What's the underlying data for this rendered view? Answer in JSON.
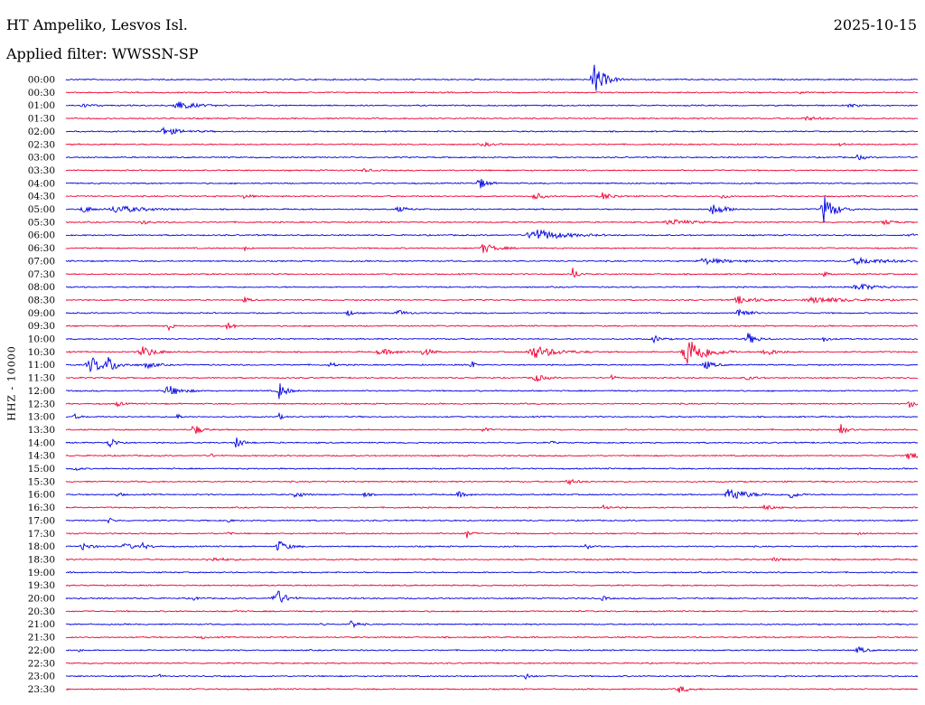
{
  "header": {
    "station": "HT Ampeliko, Lesvos Isl.",
    "date": "2025-10-15",
    "filter_label": "Applied filter: WWSSN-SP"
  },
  "chart_data": {
    "type": "line",
    "title": "HT Ampeliko, Lesvos Isl.",
    "channel_label": "HHZ - 10000",
    "colors": [
      "#0000e0",
      "#ee0033"
    ],
    "rows": [
      {
        "label": "00:00",
        "color": "blue",
        "events": [
          {
            "x": 0.62,
            "amp": 18,
            "w": 0.012
          }
        ]
      },
      {
        "label": "00:30",
        "color": "red",
        "events": [
          {
            "x": 0.86,
            "amp": 2,
            "w": 0.004
          }
        ]
      },
      {
        "label": "01:00",
        "color": "blue",
        "events": [
          {
            "x": 0.13,
            "amp": 5,
            "w": 0.02
          },
          {
            "x": 0.02,
            "amp": 2,
            "w": 0.01
          },
          {
            "x": 0.92,
            "amp": 2,
            "w": 0.01
          }
        ]
      },
      {
        "label": "01:30",
        "color": "red",
        "events": [
          {
            "x": 0.87,
            "amp": 2,
            "w": 0.015
          }
        ]
      },
      {
        "label": "02:00",
        "color": "blue",
        "events": [
          {
            "x": 0.115,
            "amp": 4,
            "w": 0.02
          }
        ]
      },
      {
        "label": "02:30",
        "color": "red",
        "events": [
          {
            "x": 0.49,
            "amp": 2,
            "w": 0.01
          },
          {
            "x": 0.91,
            "amp": 2,
            "w": 0.008
          }
        ]
      },
      {
        "label": "03:00",
        "color": "blue",
        "events": [
          {
            "x": 0.93,
            "amp": 4,
            "w": 0.006
          }
        ]
      },
      {
        "label": "03:30",
        "color": "red",
        "events": [
          {
            "x": 0.35,
            "amp": 2,
            "w": 0.008
          }
        ]
      },
      {
        "label": "04:00",
        "color": "blue",
        "events": [
          {
            "x": 0.485,
            "amp": 7,
            "w": 0.008
          }
        ]
      },
      {
        "label": "04:30",
        "color": "red",
        "events": [
          {
            "x": 0.55,
            "amp": 5,
            "w": 0.008
          },
          {
            "x": 0.63,
            "amp": 4,
            "w": 0.012
          },
          {
            "x": 0.21,
            "amp": 3,
            "w": 0.006
          },
          {
            "x": 0.77,
            "amp": 3,
            "w": 0.006
          }
        ]
      },
      {
        "label": "05:00",
        "color": "blue",
        "events": [
          {
            "x": 0.89,
            "amp": 16,
            "w": 0.012
          },
          {
            "x": 0.02,
            "amp": 4,
            "w": 0.01
          },
          {
            "x": 0.06,
            "amp": 4,
            "w": 0.03
          },
          {
            "x": 0.76,
            "amp": 6,
            "w": 0.015
          },
          {
            "x": 0.39,
            "amp": 3,
            "w": 0.01
          }
        ]
      },
      {
        "label": "05:30",
        "color": "red",
        "events": [
          {
            "x": 0.71,
            "amp": 3,
            "w": 0.025
          },
          {
            "x": 0.96,
            "amp": 3,
            "w": 0.01
          },
          {
            "x": 0.09,
            "amp": 2,
            "w": 0.01
          }
        ]
      },
      {
        "label": "06:00",
        "color": "blue",
        "events": [
          {
            "x": 0.55,
            "amp": 7,
            "w": 0.03
          },
          {
            "x": 0.99,
            "amp": 4,
            "w": 0.005
          }
        ]
      },
      {
        "label": "06:30",
        "color": "red",
        "events": [
          {
            "x": 0.49,
            "amp": 5,
            "w": 0.015
          },
          {
            "x": 0.21,
            "amp": 2,
            "w": 0.005
          }
        ]
      },
      {
        "label": "07:00",
        "color": "blue",
        "events": [
          {
            "x": 0.75,
            "amp": 3,
            "w": 0.03
          },
          {
            "x": 0.93,
            "amp": 3,
            "w": 0.04
          }
        ]
      },
      {
        "label": "07:30",
        "color": "red",
        "events": [
          {
            "x": 0.595,
            "amp": 7,
            "w": 0.006
          },
          {
            "x": 0.89,
            "amp": 3,
            "w": 0.005
          }
        ]
      },
      {
        "label": "08:00",
        "color": "blue",
        "events": [
          {
            "x": 0.93,
            "amp": 4,
            "w": 0.02
          }
        ]
      },
      {
        "label": "08:30",
        "color": "red",
        "events": [
          {
            "x": 0.79,
            "amp": 4,
            "w": 0.02
          },
          {
            "x": 0.21,
            "amp": 3,
            "w": 0.006
          },
          {
            "x": 0.88,
            "amp": 3,
            "w": 0.04
          }
        ]
      },
      {
        "label": "09:00",
        "color": "blue",
        "events": [
          {
            "x": 0.79,
            "amp": 7,
            "w": 0.01
          },
          {
            "x": 0.33,
            "amp": 5,
            "w": 0.005
          },
          {
            "x": 0.39,
            "amp": 3,
            "w": 0.01
          }
        ]
      },
      {
        "label": "09:30",
        "color": "red",
        "events": [
          {
            "x": 0.12,
            "amp": 6,
            "w": 0.004
          },
          {
            "x": 0.19,
            "amp": 5,
            "w": 0.006
          }
        ]
      },
      {
        "label": "10:00",
        "color": "blue",
        "events": [
          {
            "x": 0.8,
            "amp": 7,
            "w": 0.01
          },
          {
            "x": 0.69,
            "amp": 4,
            "w": 0.008
          },
          {
            "x": 0.89,
            "amp": 3,
            "w": 0.006
          }
        ]
      },
      {
        "label": "10:30",
        "color": "red",
        "events": [
          {
            "x": 0.73,
            "amp": 18,
            "w": 0.02
          },
          {
            "x": 0.55,
            "amp": 7,
            "w": 0.025
          },
          {
            "x": 0.09,
            "amp": 6,
            "w": 0.015
          },
          {
            "x": 0.42,
            "amp": 4,
            "w": 0.01
          },
          {
            "x": 0.82,
            "amp": 4,
            "w": 0.015
          },
          {
            "x": 0.37,
            "amp": 3,
            "w": 0.02
          }
        ]
      },
      {
        "label": "11:00",
        "color": "blue",
        "events": [
          {
            "x": 0.03,
            "amp": 8,
            "w": 0.02
          },
          {
            "x": 0.05,
            "amp": 7,
            "w": 0.008
          },
          {
            "x": 0.095,
            "amp": 4,
            "w": 0.01
          },
          {
            "x": 0.475,
            "amp": 10,
            "w": 0.003
          },
          {
            "x": 0.75,
            "amp": 5,
            "w": 0.01
          },
          {
            "x": 0.31,
            "amp": 3,
            "w": 0.006
          }
        ]
      },
      {
        "label": "11:30",
        "color": "red",
        "events": [
          {
            "x": 0.55,
            "amp": 5,
            "w": 0.01
          },
          {
            "x": 0.64,
            "amp": 3,
            "w": 0.005
          },
          {
            "x": 0.8,
            "amp": 2,
            "w": 0.01
          }
        ]
      },
      {
        "label": "12:00",
        "color": "blue",
        "events": [
          {
            "x": 0.25,
            "amp": 10,
            "w": 0.008
          },
          {
            "x": 0.12,
            "amp": 6,
            "w": 0.015
          }
        ]
      },
      {
        "label": "12:30",
        "color": "red",
        "events": [
          {
            "x": 0.99,
            "amp": 5,
            "w": 0.006
          },
          {
            "x": 0.06,
            "amp": 3,
            "w": 0.006
          }
        ]
      },
      {
        "label": "13:00",
        "color": "blue",
        "events": [
          {
            "x": 0.13,
            "amp": 6,
            "w": 0.003
          },
          {
            "x": 0.25,
            "amp": 5,
            "w": 0.003
          },
          {
            "x": 0.01,
            "amp": 3,
            "w": 0.005
          }
        ]
      },
      {
        "label": "13:30",
        "color": "red",
        "events": [
          {
            "x": 0.15,
            "amp": 7,
            "w": 0.008
          },
          {
            "x": 0.91,
            "amp": 6,
            "w": 0.006
          },
          {
            "x": 0.49,
            "amp": 4,
            "w": 0.005
          }
        ]
      },
      {
        "label": "14:00",
        "color": "blue",
        "events": [
          {
            "x": 0.05,
            "amp": 7,
            "w": 0.008
          },
          {
            "x": 0.2,
            "amp": 6,
            "w": 0.008
          },
          {
            "x": 0.57,
            "amp": 2,
            "w": 0.004
          }
        ]
      },
      {
        "label": "14:30",
        "color": "red",
        "events": [
          {
            "x": 0.99,
            "amp": 5,
            "w": 0.01
          },
          {
            "x": 0.17,
            "amp": 2,
            "w": 0.005
          }
        ]
      },
      {
        "label": "15:00",
        "color": "blue",
        "events": [
          {
            "x": 0.01,
            "amp": 3,
            "w": 0.005
          }
        ]
      },
      {
        "label": "15:30",
        "color": "red",
        "events": [
          {
            "x": 0.59,
            "amp": 3,
            "w": 0.01
          }
        ]
      },
      {
        "label": "16:00",
        "color": "blue",
        "events": [
          {
            "x": 0.78,
            "amp": 7,
            "w": 0.02
          },
          {
            "x": 0.85,
            "amp": 5,
            "w": 0.008
          },
          {
            "x": 0.27,
            "amp": 4,
            "w": 0.008
          },
          {
            "x": 0.46,
            "amp": 3,
            "w": 0.01
          },
          {
            "x": 0.35,
            "amp": 3,
            "w": 0.005
          },
          {
            "x": 0.06,
            "amp": 3,
            "w": 0.005
          }
        ]
      },
      {
        "label": "16:30",
        "color": "red",
        "events": [
          {
            "x": 0.82,
            "amp": 4,
            "w": 0.008
          },
          {
            "x": 0.63,
            "amp": 3,
            "w": 0.01
          }
        ]
      },
      {
        "label": "17:00",
        "color": "blue",
        "events": [
          {
            "x": 0.05,
            "amp": 3,
            "w": 0.005
          },
          {
            "x": 0.19,
            "amp": 3,
            "w": 0.003
          }
        ]
      },
      {
        "label": "17:30",
        "color": "red",
        "events": [
          {
            "x": 0.47,
            "amp": 6,
            "w": 0.005
          },
          {
            "x": 0.93,
            "amp": 3,
            "w": 0.004
          },
          {
            "x": 0.19,
            "amp": 3,
            "w": 0.003
          }
        ]
      },
      {
        "label": "18:00",
        "color": "blue",
        "events": [
          {
            "x": 0.25,
            "amp": 7,
            "w": 0.01
          },
          {
            "x": 0.02,
            "amp": 4,
            "w": 0.01
          },
          {
            "x": 0.07,
            "amp": 3,
            "w": 0.015
          },
          {
            "x": 0.09,
            "amp": 3,
            "w": 0.006
          },
          {
            "x": 0.61,
            "amp": 4,
            "w": 0.004
          }
        ]
      },
      {
        "label": "18:30",
        "color": "red",
        "events": [
          {
            "x": 0.17,
            "amp": 2,
            "w": 0.02
          },
          {
            "x": 0.83,
            "amp": 2,
            "w": 0.01
          }
        ]
      },
      {
        "label": "19:00",
        "color": "blue",
        "events": []
      },
      {
        "label": "19:30",
        "color": "red",
        "events": []
      },
      {
        "label": "20:00",
        "color": "blue",
        "events": [
          {
            "x": 0.245,
            "amp": 13,
            "w": 0.01
          },
          {
            "x": 0.63,
            "amp": 3,
            "w": 0.005
          },
          {
            "x": 0.15,
            "amp": 2,
            "w": 0.005
          }
        ]
      },
      {
        "label": "20:30",
        "color": "red",
        "events": [
          {
            "x": 0.2,
            "amp": 2,
            "w": 0.003
          }
        ]
      },
      {
        "label": "21:00",
        "color": "blue",
        "events": [
          {
            "x": 0.335,
            "amp": 6,
            "w": 0.006
          },
          {
            "x": 0.3,
            "amp": 2,
            "w": 0.004
          }
        ]
      },
      {
        "label": "21:30",
        "color": "red",
        "events": [
          {
            "x": 0.16,
            "amp": 2,
            "w": 0.003
          }
        ]
      },
      {
        "label": "22:00",
        "color": "blue",
        "events": [
          {
            "x": 0.93,
            "amp": 4,
            "w": 0.008
          },
          {
            "x": 0.015,
            "amp": 2,
            "w": 0.003
          }
        ]
      },
      {
        "label": "22:30",
        "color": "red",
        "events": []
      },
      {
        "label": "23:00",
        "color": "blue",
        "events": [
          {
            "x": 0.54,
            "amp": 3,
            "w": 0.006
          },
          {
            "x": 0.11,
            "amp": 2,
            "w": 0.003
          }
        ]
      },
      {
        "label": "23:30",
        "color": "red",
        "events": [
          {
            "x": 0.72,
            "amp": 4,
            "w": 0.01
          }
        ]
      }
    ]
  }
}
